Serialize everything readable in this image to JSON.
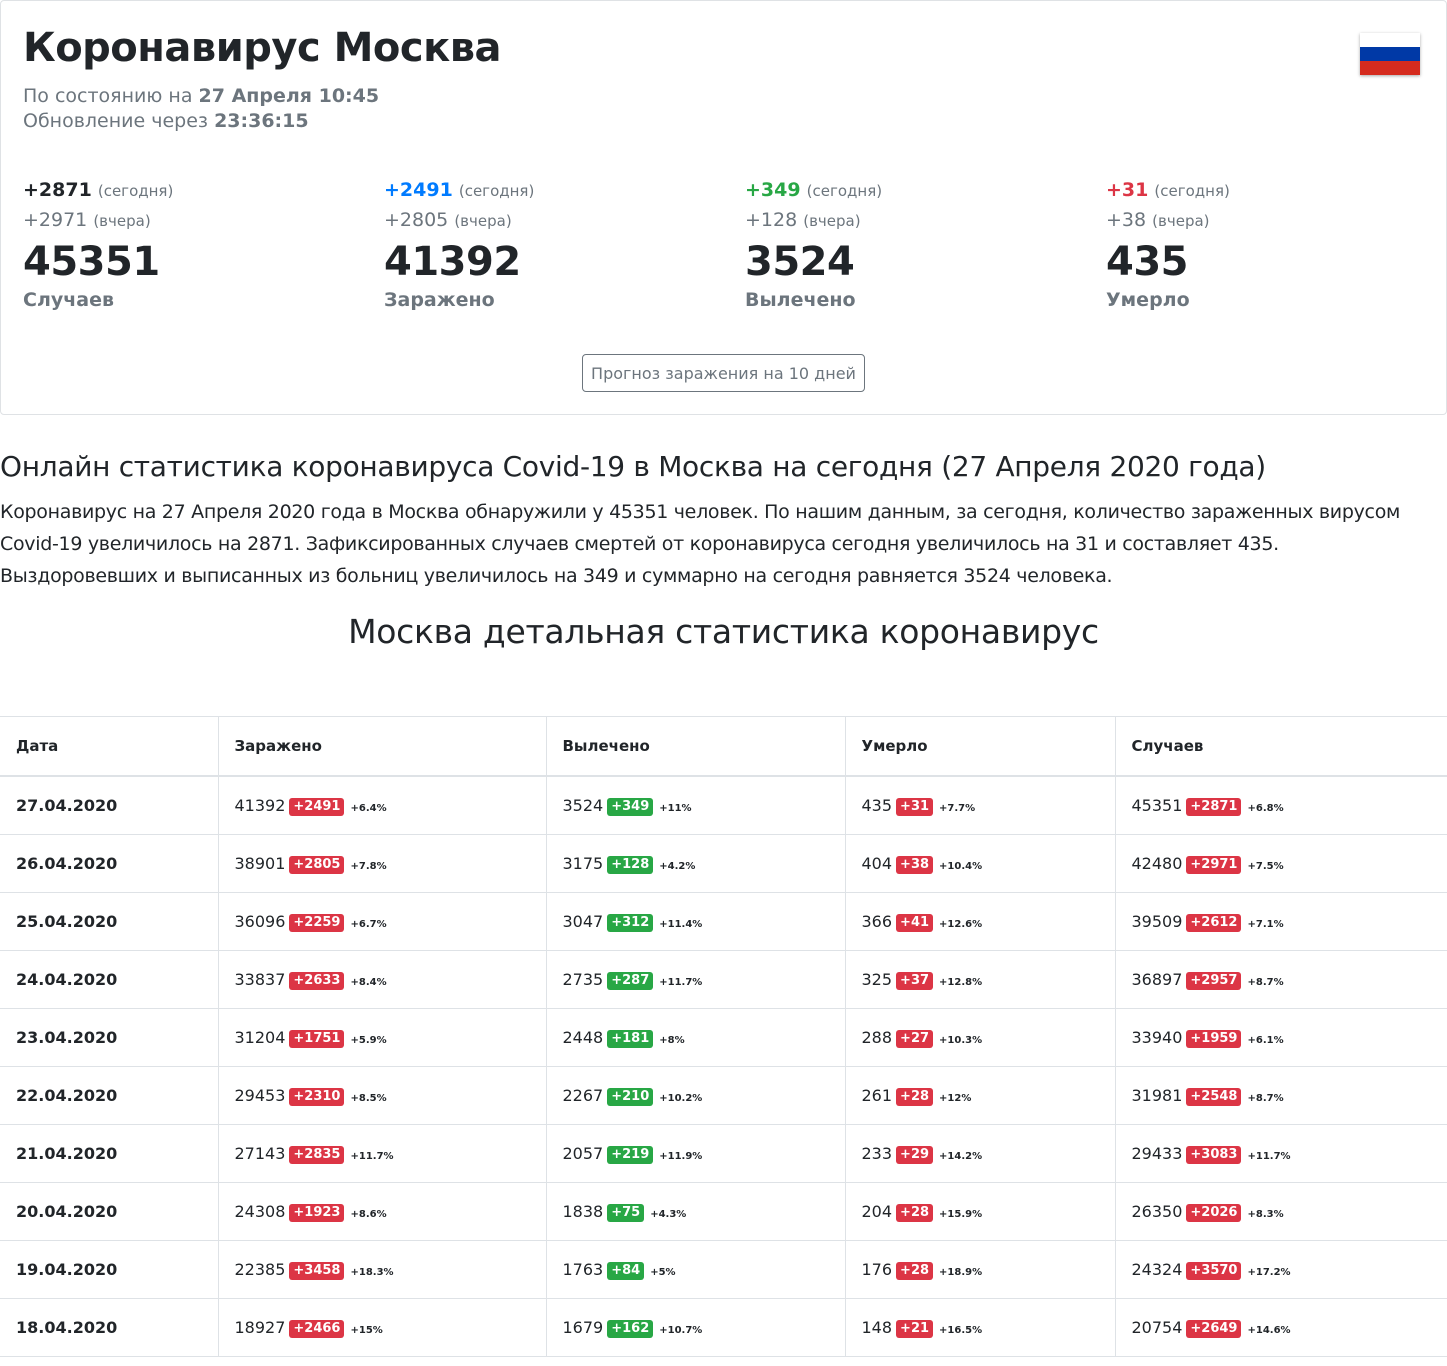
{
  "header": {
    "title": "Коронавирус Москва",
    "status_prefix": "По состоянию на",
    "status_date": "27 Апреля 10:45",
    "update_prefix": "Обновление через",
    "update_time": "23:36:15"
  },
  "colors": {
    "blue": "#007bff",
    "green": "#28a745",
    "red": "#dc3545",
    "gray": "#6c757d"
  },
  "flag": {
    "name": "russia-flag",
    "stripes": [
      "#ffffff",
      "#0039a6",
      "#d52b1e"
    ]
  },
  "stats": [
    {
      "today": "+2871",
      "today_label": "(сегодня)",
      "yesterday": "+2971",
      "yesterday_label": "(вчера)",
      "total": "45351",
      "label": "Случаев"
    },
    {
      "today": "+2491",
      "today_label": "(сегодня)",
      "yesterday": "+2805",
      "yesterday_label": "(вчера)",
      "total": "41392",
      "label": "Заражено"
    },
    {
      "today": "+349",
      "today_label": "(сегодня)",
      "yesterday": "+128",
      "yesterday_label": "(вчера)",
      "total": "3524",
      "label": "Вылечено"
    },
    {
      "today": "+31",
      "today_label": "(сегодня)",
      "yesterday": "+38",
      "yesterday_label": "(вчера)",
      "total": "435",
      "label": "Умерло"
    }
  ],
  "forecast_button": "Прогноз заражения на 10 дней",
  "article": {
    "heading": "Онлайн статистика коронавируса Covid-19 в Москва на сегодня (27 Апреля 2020 года)",
    "text": "Коронавирус на 27 Апреля 2020 года в Москва обнаружили у 45351 человек. По нашим данным, за сегодня, количество зараженных вирусом Covid-19 увеличилось на 2871. Зафиксированных случаев смертей от коронавируса сегодня увеличилось на 31 и составляет 435. Выздоровевших и выписанных из больниц увеличилось на 349 и суммарно на сегодня равняется 3524 человека."
  },
  "table": {
    "heading": "Москва детальная статистика коронавирус",
    "columns": [
      "Дата",
      "Заражено",
      "Вылечено",
      "Умерло",
      "Случаев"
    ],
    "rows": [
      {
        "date": "27.04.2020",
        "infected": [
          "41392",
          "+2491",
          "+6.4%"
        ],
        "recovered": [
          "3524",
          "+349",
          "+11%"
        ],
        "died": [
          "435",
          "+31",
          "+7.7%"
        ],
        "cases": [
          "45351",
          "+2871",
          "+6.8%"
        ]
      },
      {
        "date": "26.04.2020",
        "infected": [
          "38901",
          "+2805",
          "+7.8%"
        ],
        "recovered": [
          "3175",
          "+128",
          "+4.2%"
        ],
        "died": [
          "404",
          "+38",
          "+10.4%"
        ],
        "cases": [
          "42480",
          "+2971",
          "+7.5%"
        ]
      },
      {
        "date": "25.04.2020",
        "infected": [
          "36096",
          "+2259",
          "+6.7%"
        ],
        "recovered": [
          "3047",
          "+312",
          "+11.4%"
        ],
        "died": [
          "366",
          "+41",
          "+12.6%"
        ],
        "cases": [
          "39509",
          "+2612",
          "+7.1%"
        ]
      },
      {
        "date": "24.04.2020",
        "infected": [
          "33837",
          "+2633",
          "+8.4%"
        ],
        "recovered": [
          "2735",
          "+287",
          "+11.7%"
        ],
        "died": [
          "325",
          "+37",
          "+12.8%"
        ],
        "cases": [
          "36897",
          "+2957",
          "+8.7%"
        ]
      },
      {
        "date": "23.04.2020",
        "infected": [
          "31204",
          "+1751",
          "+5.9%"
        ],
        "recovered": [
          "2448",
          "+181",
          "+8%"
        ],
        "died": [
          "288",
          "+27",
          "+10.3%"
        ],
        "cases": [
          "33940",
          "+1959",
          "+6.1%"
        ]
      },
      {
        "date": "22.04.2020",
        "infected": [
          "29453",
          "+2310",
          "+8.5%"
        ],
        "recovered": [
          "2267",
          "+210",
          "+10.2%"
        ],
        "died": [
          "261",
          "+28",
          "+12%"
        ],
        "cases": [
          "31981",
          "+2548",
          "+8.7%"
        ]
      },
      {
        "date": "21.04.2020",
        "infected": [
          "27143",
          "+2835",
          "+11.7%"
        ],
        "recovered": [
          "2057",
          "+219",
          "+11.9%"
        ],
        "died": [
          "233",
          "+29",
          "+14.2%"
        ],
        "cases": [
          "29433",
          "+3083",
          "+11.7%"
        ]
      },
      {
        "date": "20.04.2020",
        "infected": [
          "24308",
          "+1923",
          "+8.6%"
        ],
        "recovered": [
          "1838",
          "+75",
          "+4.3%"
        ],
        "died": [
          "204",
          "+28",
          "+15.9%"
        ],
        "cases": [
          "26350",
          "+2026",
          "+8.3%"
        ]
      },
      {
        "date": "19.04.2020",
        "infected": [
          "22385",
          "+3458",
          "+18.3%"
        ],
        "recovered": [
          "1763",
          "+84",
          "+5%"
        ],
        "died": [
          "176",
          "+28",
          "+18.9%"
        ],
        "cases": [
          "24324",
          "+3570",
          "+17.2%"
        ]
      },
      {
        "date": "18.04.2020",
        "infected": [
          "18927",
          "+2466",
          "+15%"
        ],
        "recovered": [
          "1679",
          "+162",
          "+10.7%"
        ],
        "died": [
          "148",
          "+21",
          "+16.5%"
        ],
        "cases": [
          "20754",
          "+2649",
          "+14.6%"
        ]
      }
    ]
  }
}
